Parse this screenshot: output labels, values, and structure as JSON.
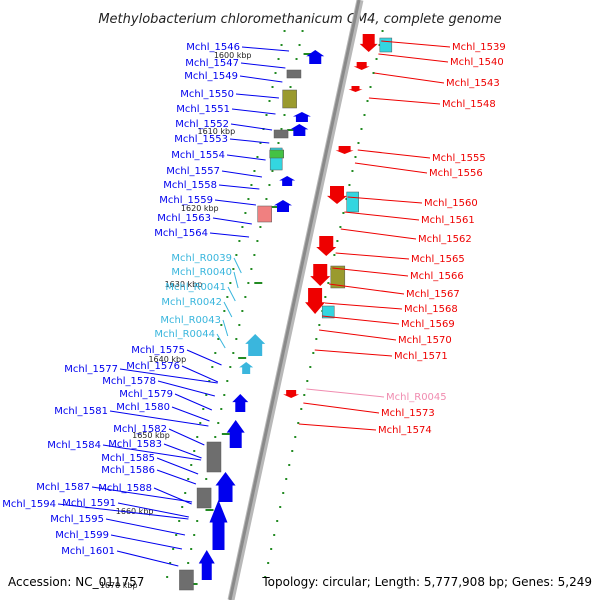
{
  "title": "Methylobacterium chloromethanicum CM4, complete genome",
  "footer": {
    "accession": "Accession: NC_011757",
    "topology": "Topology: circular; Length: 5,777,908 bp; Genes: 5,249"
  },
  "colors": {
    "forward_gene": "#0000ee",
    "reverse_gene": "#ee0000",
    "forward_rna": "#3ab6dd",
    "reverse_rna": "#f08cb0",
    "cds_block_cyan": "#33d6e0",
    "cds_block_olive": "#9a9a2e",
    "cds_block_grey": "#6e6e6e",
    "backbone": "#8a8a8a",
    "tick": "#228b22"
  },
  "kbp_ticks": [
    "1600 kbp",
    "1610 kbp",
    "1620 kbp",
    "1630 kbp",
    "1640 kbp",
    "1650 kbp",
    "1660 kbp",
    "1670 kbp"
  ],
  "left_labels": [
    {
      "text": "Mchl_1546",
      "kind": "gene"
    },
    {
      "text": "Mchl_1547",
      "kind": "gene"
    },
    {
      "text": "Mchl_1549",
      "kind": "gene"
    },
    {
      "text": "Mchl_1550",
      "kind": "gene"
    },
    {
      "text": "Mchl_1551",
      "kind": "gene"
    },
    {
      "text": "Mchl_1552",
      "kind": "gene"
    },
    {
      "text": "Mchl_1553",
      "kind": "gene"
    },
    {
      "text": "Mchl_1554",
      "kind": "gene"
    },
    {
      "text": "Mchl_1557",
      "kind": "gene"
    },
    {
      "text": "Mchl_1558",
      "kind": "gene"
    },
    {
      "text": "Mchl_1559",
      "kind": "gene"
    },
    {
      "text": "Mchl_1563",
      "kind": "gene"
    },
    {
      "text": "Mchl_1564",
      "kind": "gene"
    },
    {
      "text": "Mchl_R0039",
      "kind": "rna"
    },
    {
      "text": "Mchl_R0040",
      "kind": "rna"
    },
    {
      "text": "Mchl_R0041",
      "kind": "rna"
    },
    {
      "text": "Mchl_R0042",
      "kind": "rna"
    },
    {
      "text": "Mchl_R0043",
      "kind": "rna"
    },
    {
      "text": "Mchl_R0044",
      "kind": "rna"
    },
    {
      "text": "Mchl_1575",
      "kind": "gene"
    },
    {
      "text": "Mchl_1576",
      "kind": "gene"
    },
    {
      "text": "Mchl_1577",
      "kind": "gene"
    },
    {
      "text": "Mchl_1578",
      "kind": "gene"
    },
    {
      "text": "Mchl_1579",
      "kind": "gene"
    },
    {
      "text": "Mchl_1580",
      "kind": "gene"
    },
    {
      "text": "Mchl_1581",
      "kind": "gene"
    },
    {
      "text": "Mchl_1582",
      "kind": "gene"
    },
    {
      "text": "Mchl_1583",
      "kind": "gene"
    },
    {
      "text": "Mchl_1584",
      "kind": "gene"
    },
    {
      "text": "Mchl_1585",
      "kind": "gene"
    },
    {
      "text": "Mchl_1586",
      "kind": "gene"
    },
    {
      "text": "Mchl_1587",
      "kind": "gene"
    },
    {
      "text": "Mchl_1588",
      "kind": "gene"
    },
    {
      "text": "Mchl_1591",
      "kind": "gene"
    },
    {
      "text": "Mchl_1594",
      "kind": "gene"
    },
    {
      "text": "Mchl_1595",
      "kind": "gene"
    },
    {
      "text": "Mchl_1599",
      "kind": "gene"
    },
    {
      "text": "Mchl_1601",
      "kind": "gene"
    }
  ],
  "right_labels": [
    {
      "text": "Mchl_1539",
      "kind": "gene"
    },
    {
      "text": "Mchl_1540",
      "kind": "gene"
    },
    {
      "text": "Mchl_1543",
      "kind": "gene"
    },
    {
      "text": "Mchl_1548",
      "kind": "gene"
    },
    {
      "text": "Mchl_1555",
      "kind": "gene"
    },
    {
      "text": "Mchl_1556",
      "kind": "gene"
    },
    {
      "text": "Mchl_1560",
      "kind": "gene"
    },
    {
      "text": "Mchl_1561",
      "kind": "gene"
    },
    {
      "text": "Mchl_1562",
      "kind": "gene"
    },
    {
      "text": "Mchl_1565",
      "kind": "gene"
    },
    {
      "text": "Mchl_1566",
      "kind": "gene"
    },
    {
      "text": "Mchl_1567",
      "kind": "gene"
    },
    {
      "text": "Mchl_1568",
      "kind": "gene"
    },
    {
      "text": "Mchl_1569",
      "kind": "gene"
    },
    {
      "text": "Mchl_1570",
      "kind": "gene"
    },
    {
      "text": "Mchl_1571",
      "kind": "gene"
    },
    {
      "text": "Mchl_R0045",
      "kind": "rna"
    },
    {
      "text": "Mchl_1573",
      "kind": "gene"
    },
    {
      "text": "Mchl_1574",
      "kind": "gene"
    }
  ]
}
